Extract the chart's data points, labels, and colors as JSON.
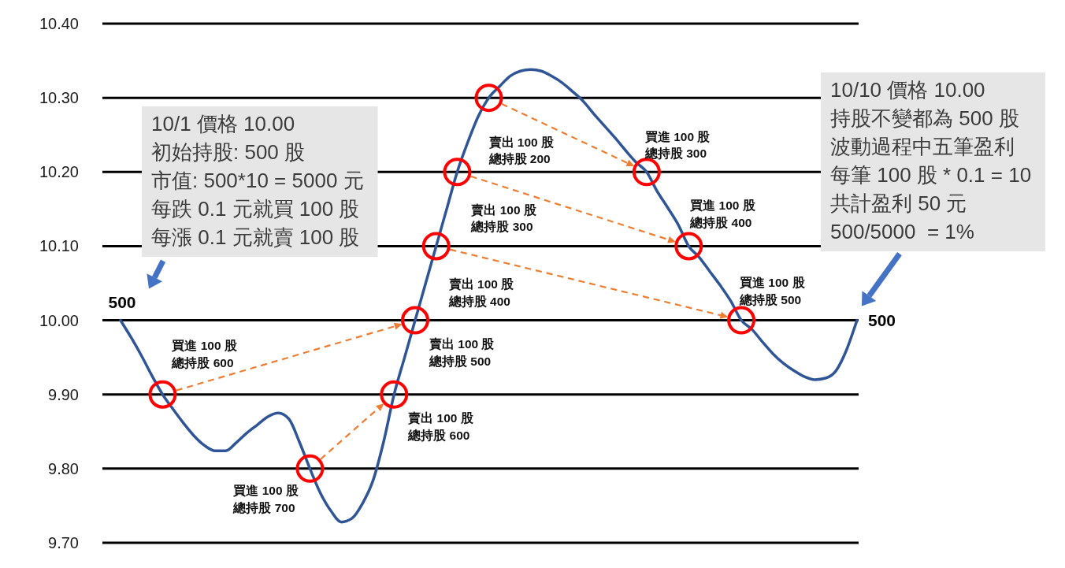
{
  "chart_data": {
    "type": "line",
    "categories": [
      null,
      null,
      null,
      null,
      null,
      null,
      null,
      null,
      null,
      null,
      null,
      null,
      null,
      null,
      null,
      null,
      null,
      null,
      null,
      null,
      null,
      null,
      null,
      null,
      null,
      null,
      null,
      null,
      null,
      null,
      null,
      null,
      null,
      null,
      null,
      null,
      null,
      null,
      null,
      null,
      null,
      null,
      null,
      null,
      null,
      null,
      null,
      null,
      null,
      null,
      null,
      null,
      null,
      null,
      null,
      null,
      null,
      null,
      null,
      null,
      null,
      null,
      null,
      null,
      null,
      null,
      null,
      null,
      null,
      null,
      null
    ],
    "ylim": [
      9.7,
      10.4
    ],
    "yticks": [
      {
        "value": 9.7,
        "label": "9.70"
      },
      {
        "value": 9.8,
        "label": "9.80"
      },
      {
        "value": 9.9,
        "label": "9.90"
      },
      {
        "value": 10.0,
        "label": "10.00"
      },
      {
        "value": 10.1,
        "label": "10.10"
      },
      {
        "value": 10.2,
        "label": "10.20"
      },
      {
        "value": 10.3,
        "label": "10.30"
      },
      {
        "value": 10.4,
        "label": "10.40"
      }
    ],
    "grid": "y",
    "tick_labels": "y",
    "series": [
      {
        "color": "#2f5597",
        "values": [
          10.0,
          9.977,
          9.952,
          9.925,
          9.9,
          9.88,
          9.861,
          9.844,
          9.831,
          9.824,
          9.824,
          9.835,
          9.848,
          9.859,
          9.87,
          9.875,
          9.867,
          9.836,
          9.8,
          9.767,
          9.743,
          9.728,
          9.733,
          9.753,
          9.784,
          9.836,
          9.9,
          9.95,
          10.0,
          10.05,
          10.1,
          10.15,
          10.2,
          10.24,
          10.275,
          10.3,
          10.315,
          10.329,
          10.336,
          10.338,
          10.336,
          10.329,
          10.32,
          10.308,
          10.295,
          10.278,
          10.262,
          10.246,
          10.229,
          10.213,
          10.2,
          10.174,
          10.152,
          10.129,
          10.1,
          10.085,
          10.066,
          10.047,
          10.026,
          10.0,
          9.988,
          9.971,
          9.955,
          9.942,
          9.932,
          9.924,
          9.92,
          9.922,
          9.932,
          9.96,
          10.0
        ]
      },
      {
        "type": "scatter",
        "color": "#ff0000",
        "marker": "circle",
        "values": [
          null,
          null,
          null,
          null,
          9.9,
          null,
          null,
          null,
          null,
          null,
          null,
          null,
          null,
          null,
          null,
          null,
          null,
          null,
          9.8,
          null,
          null,
          null,
          null,
          null,
          null,
          null,
          9.9,
          null,
          10.0,
          null,
          10.1,
          null,
          10.2,
          null,
          null,
          10.3,
          null,
          null,
          null,
          null,
          null,
          null,
          null,
          null,
          null,
          null,
          null,
          null,
          null,
          null,
          10.2,
          null,
          null,
          null,
          10.1,
          null,
          null,
          null,
          null,
          10.0,
          null,
          null,
          null,
          null,
          null,
          null,
          null,
          null,
          null,
          null,
          null
        ],
        "value_labels": [
          null,
          null,
          null,
          null,
          "買進 100 股總持股 600",
          null,
          null,
          null,
          null,
          null,
          null,
          null,
          null,
          null,
          null,
          null,
          null,
          null,
          "買進 100 股總持股 700",
          null,
          null,
          null,
          null,
          null,
          null,
          null,
          "賣出 100 股總持股 600",
          null,
          "賣出 100 股總持股 500",
          null,
          "賣出 100 股總持股 400",
          null,
          "賣出 100 股總持股 300",
          null,
          null,
          "賣出 100 股總持股 200",
          null,
          null,
          null,
          null,
          null,
          null,
          null,
          null,
          null,
          null,
          null,
          null,
          null,
          null,
          "買進 100 股總持股 300",
          null,
          null,
          null,
          "買進 100 股總持股 400",
          null,
          null,
          null,
          null,
          "買進 100 股總持股 500",
          null,
          null,
          null,
          null,
          null,
          null,
          null,
          null,
          null,
          null,
          null
        ]
      }
    ],
    "annotations": [
      "10/1 價格 10.00",
      "初始持股: 500 股",
      "市值: 500*10 = 5000 元",
      "每跌 0.1 元就買 100 股",
      "每漲 0.1 元就賣 100 股",
      "500",
      "10/10 價格 10.00",
      "持股不變都為 500 股",
      "波動過程中五筆盈利",
      "每筆 100 股 * 0.1 = 10",
      "共計盈利 50 元",
      "500/5000  = 1%",
      "500"
    ]
  }
}
